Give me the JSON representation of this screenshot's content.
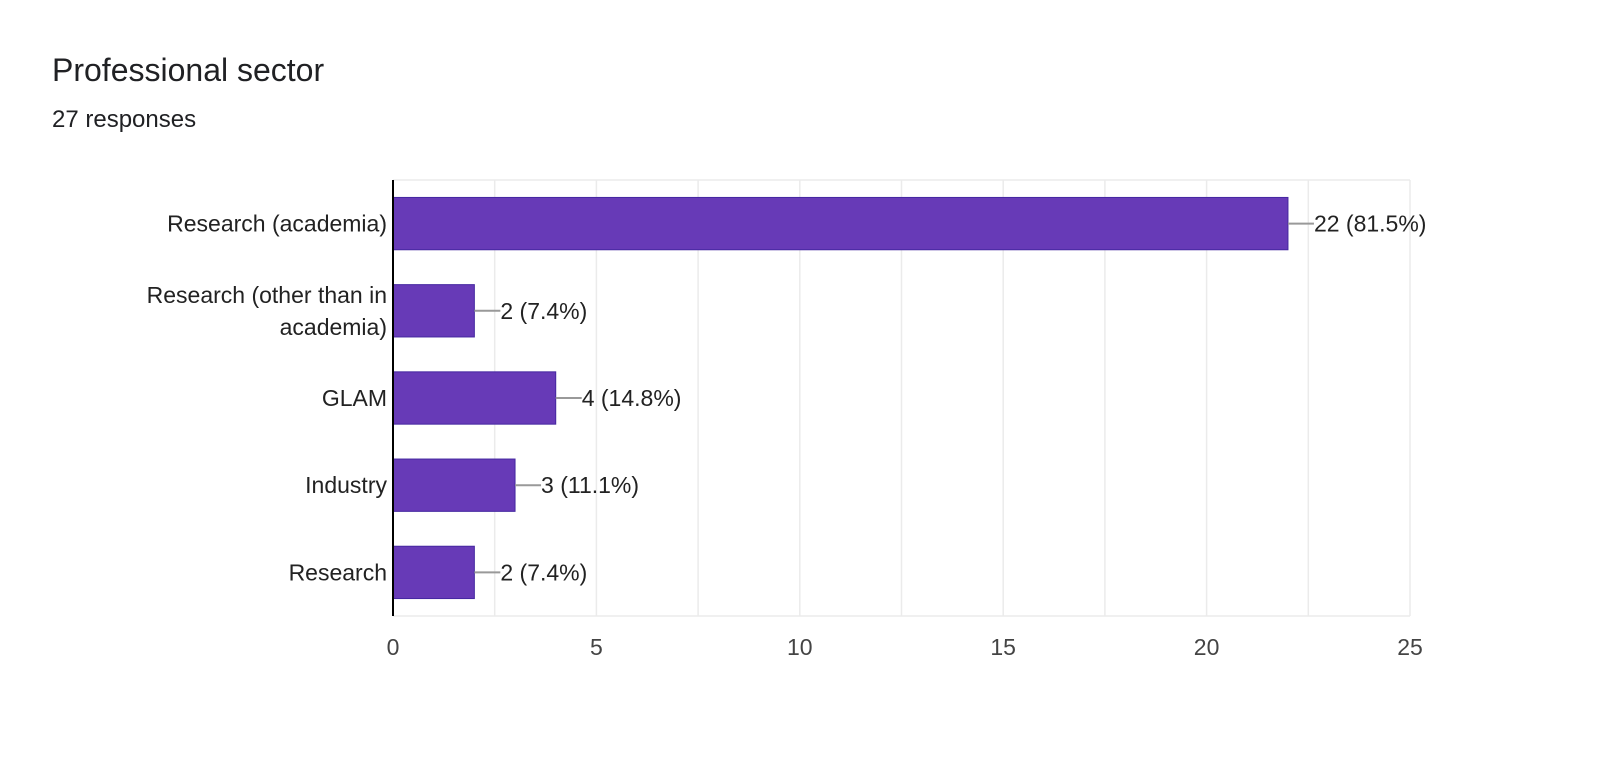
{
  "header": {
    "title": "Professional sector",
    "subtitle": "27 responses"
  },
  "chart_data": {
    "type": "bar",
    "orientation": "horizontal",
    "title": "Professional sector",
    "subtitle": "27 responses",
    "categories": [
      [
        "Research (academia)"
      ],
      [
        "Research (other than in",
        "academia)"
      ],
      [
        "GLAM"
      ],
      [
        "Industry"
      ],
      [
        "Research"
      ]
    ],
    "values": [
      22,
      2,
      4,
      3,
      2
    ],
    "data_labels": [
      "22 (81.5%)",
      "2 (7.4%)",
      "4 (14.8%)",
      "3 (11.1%)",
      "2 (7.4%)"
    ],
    "xlim": [
      0,
      25
    ],
    "xticks": [
      0,
      5,
      10,
      15,
      20,
      25
    ],
    "grid": true,
    "colors": {
      "bar": "#673ab7",
      "bar_border": "#4527a0",
      "grid": "#ebebeb",
      "axis": "#000000",
      "leader": "#999999",
      "text": "#222222",
      "tick_text": "#444444"
    }
  }
}
